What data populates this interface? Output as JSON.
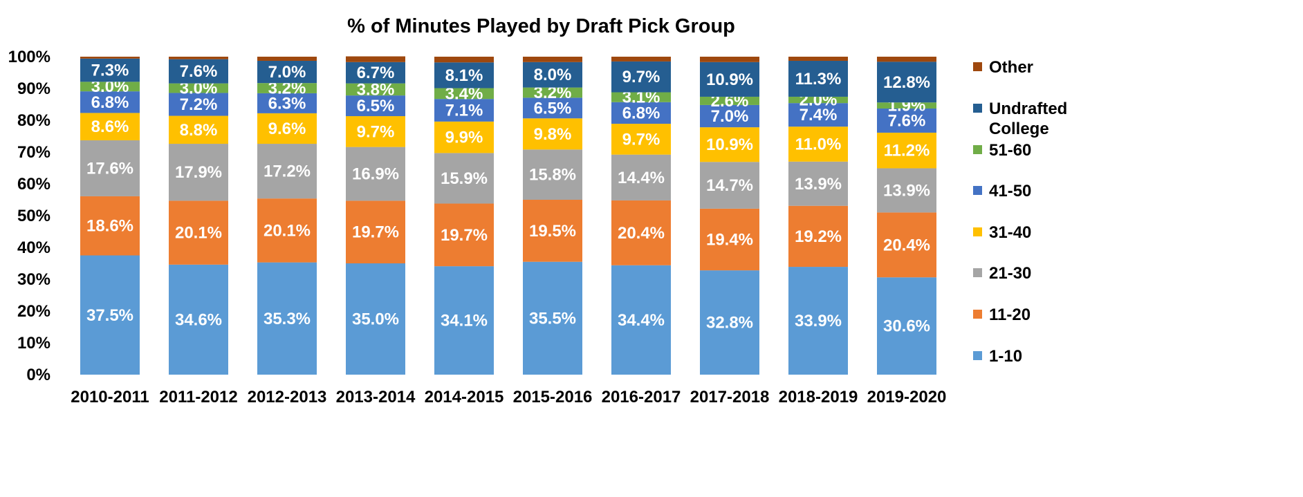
{
  "chart_data": {
    "type": "bar",
    "stacked": true,
    "title": "% of Minutes Played by Draft Pick Group",
    "xlabel": "",
    "ylabel": "",
    "ylim": [
      0,
      100
    ],
    "yticks": [
      "0%",
      "10%",
      "20%",
      "30%",
      "40%",
      "50%",
      "60%",
      "70%",
      "80%",
      "90%",
      "100%"
    ],
    "grid": false,
    "legend_position": "right",
    "categories": [
      "2010-2011",
      "2011-2012",
      "2012-2013",
      "2013-2014",
      "2014-2015",
      "2015-2016",
      "2016-2017",
      "2017-2018",
      "2018-2019",
      "2019-2020"
    ],
    "series": [
      {
        "name": "1-10",
        "color": "#5B9BD5",
        "values": [
          37.5,
          34.6,
          35.3,
          35.0,
          34.1,
          35.5,
          34.4,
          32.8,
          33.9,
          30.6
        ],
        "labels": [
          "37.5%",
          "34.6%",
          "35.3%",
          "35.0%",
          "34.1%",
          "35.5%",
          "34.4%",
          "32.8%",
          "33.9%",
          "30.6%"
        ]
      },
      {
        "name": "11-20",
        "color": "#ED7D31",
        "values": [
          18.6,
          20.1,
          20.1,
          19.7,
          19.7,
          19.5,
          20.4,
          19.4,
          19.2,
          20.4
        ],
        "labels": [
          "18.6%",
          "20.1%",
          "20.1%",
          "19.7%",
          "19.7%",
          "19.5%",
          "20.4%",
          "19.4%",
          "19.2%",
          "20.4%"
        ]
      },
      {
        "name": "21-30",
        "color": "#A5A5A5",
        "values": [
          17.6,
          17.9,
          17.2,
          16.9,
          15.9,
          15.8,
          14.4,
          14.7,
          13.9,
          13.9
        ],
        "labels": [
          "17.6%",
          "17.9%",
          "17.2%",
          "16.9%",
          "15.9%",
          "15.8%",
          "14.4%",
          "14.7%",
          "13.9%",
          "13.9%"
        ]
      },
      {
        "name": "31-40",
        "color": "#FFC000",
        "values": [
          8.6,
          8.8,
          9.6,
          9.7,
          9.9,
          9.8,
          9.7,
          10.9,
          11.0,
          11.2
        ],
        "labels": [
          "8.6%",
          "8.8%",
          "9.6%",
          "9.7%",
          "9.9%",
          "9.8%",
          "9.7%",
          "10.9%",
          "11.0%",
          "11.2%"
        ]
      },
      {
        "name": "41-50",
        "color": "#4472C4",
        "values": [
          6.8,
          7.2,
          6.3,
          6.5,
          7.1,
          6.5,
          6.8,
          7.0,
          7.4,
          7.6
        ],
        "labels": [
          "6.8%",
          "7.2%",
          "6.3%",
          "6.5%",
          "7.1%",
          "6.5%",
          "6.8%",
          "7.0%",
          "7.4%",
          "7.6%"
        ]
      },
      {
        "name": "51-60",
        "color": "#70AD47",
        "values": [
          3.0,
          3.0,
          3.2,
          3.8,
          3.4,
          3.2,
          3.1,
          2.6,
          2.0,
          1.9
        ],
        "labels": [
          "3.0%",
          "3.0%",
          "3.2%",
          "3.8%",
          "3.4%",
          "3.2%",
          "3.1%",
          "2.6%",
          "2.0%",
          "1.9%"
        ]
      },
      {
        "name": "Undrafted College",
        "color": "#255E91",
        "values": [
          7.3,
          7.6,
          7.0,
          6.7,
          8.1,
          8.0,
          9.7,
          10.9,
          11.3,
          12.8
        ],
        "labels": [
          "7.3%",
          "7.6%",
          "7.0%",
          "6.7%",
          "8.1%",
          "8.0%",
          "9.7%",
          "10.9%",
          "11.3%",
          "12.8%"
        ]
      },
      {
        "name": "Other",
        "color": "#9E480E",
        "values": [
          0.6,
          0.8,
          1.3,
          1.8,
          1.8,
          1.7,
          1.5,
          1.7,
          1.3,
          1.6
        ],
        "labels": [
          "",
          "",
          "",
          "",
          "",
          "",
          "",
          "",
          "",
          ""
        ]
      }
    ],
    "legend": [
      {
        "name": "Other",
        "lines": [
          "Other"
        ],
        "color": "#9E480E"
      },
      {
        "name": "Undrafted College",
        "lines": [
          "Undrafted",
          "College"
        ],
        "color": "#255E91"
      },
      {
        "name": "51-60",
        "lines": [
          "51-60"
        ],
        "color": "#70AD47"
      },
      {
        "name": "41-50",
        "lines": [
          "41-50"
        ],
        "color": "#4472C4"
      },
      {
        "name": "31-40",
        "lines": [
          "31-40"
        ],
        "color": "#FFC000"
      },
      {
        "name": "21-30",
        "lines": [
          "21-30"
        ],
        "color": "#A5A5A5"
      },
      {
        "name": "11-20",
        "lines": [
          "11-20"
        ],
        "color": "#ED7D31"
      },
      {
        "name": "1-10",
        "lines": [
          "1-10"
        ],
        "color": "#5B9BD5"
      }
    ]
  }
}
